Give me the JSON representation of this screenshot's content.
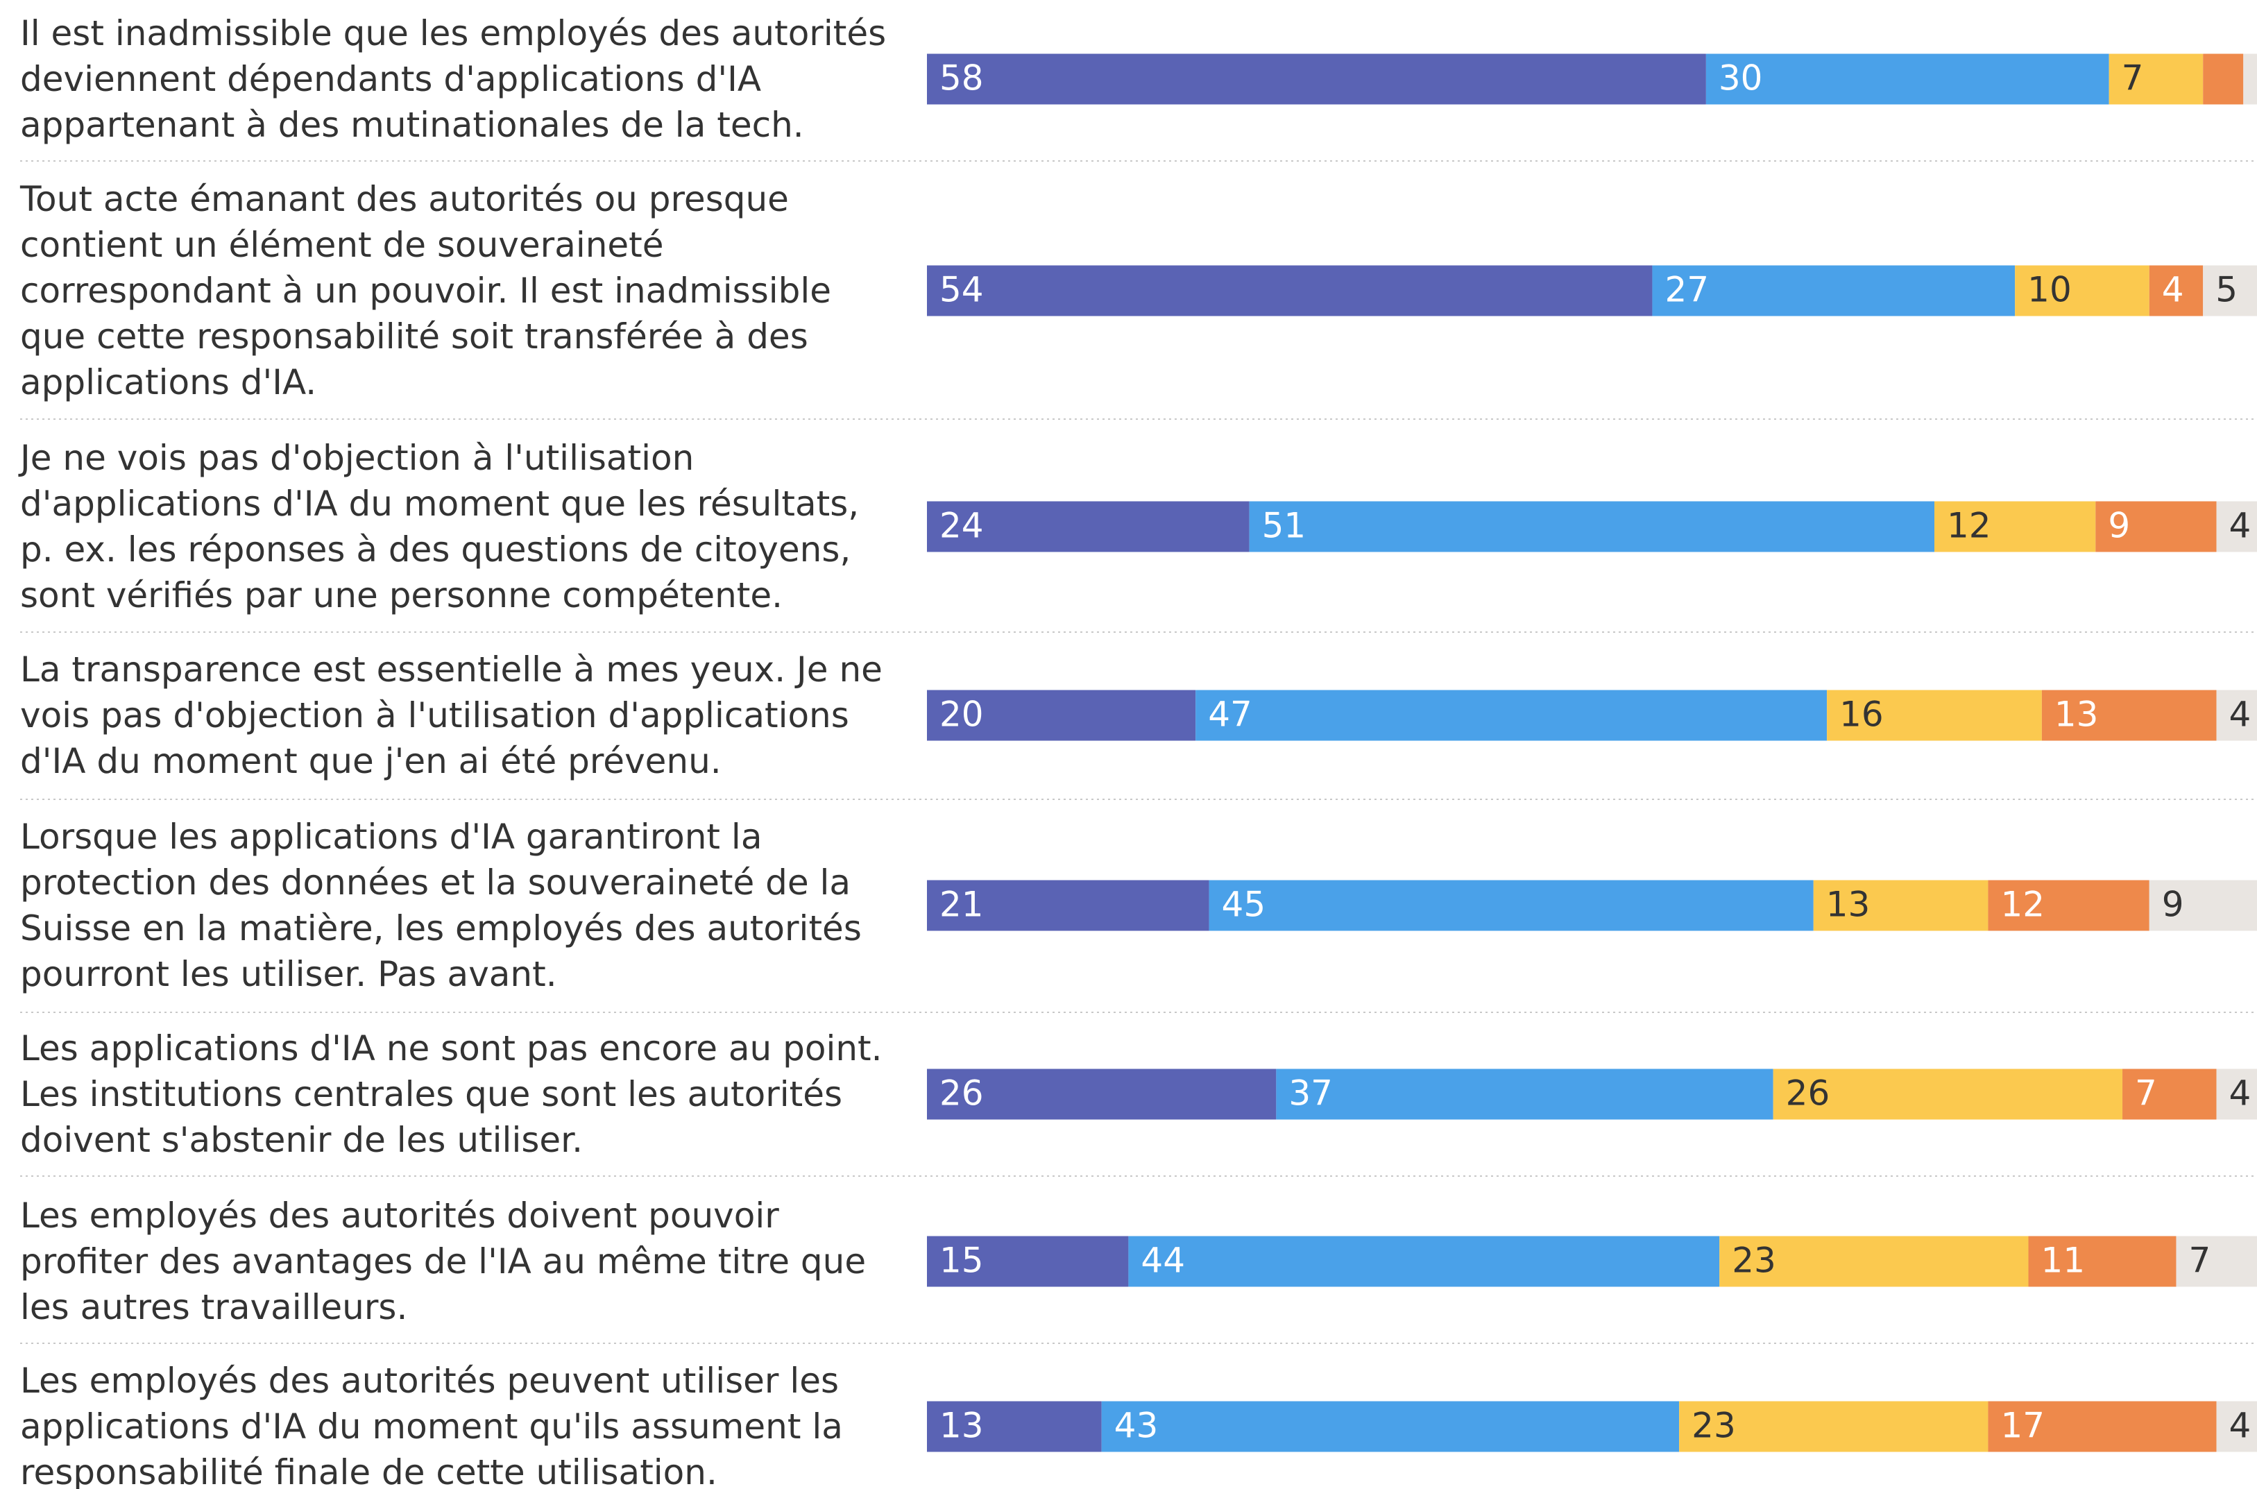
{
  "chart_data": {
    "type": "stacked-bar-horizontal",
    "categories": [
      "Il est inadmissible que les employés des autorités deviennent dépendants d'applications d'IA appartenant à des mutinationales de la tech.",
      "Tout acte émanant des autorités ou presque contient un élément de souveraineté correspondant à un pouvoir. Il est inadmissible que cette responsabilité soit transférée à des applications d'IA.",
      "Je ne vois pas d'objection à l'utilisation d'applications d'IA du moment que les résultats, p. ex. les réponses à des questions de citoyens, sont vérifiés par une personne compétente.",
      "La transparence est essentielle à mes yeux. Je ne vois pas d'objection à l'utilisation d'applications d'IA du moment que j'en ai été prévenu.",
      "Lorsque les applications d'IA garantiront la protection des données et la souveraineté de la Suisse en la matière, les employés des autorités pourront les utiliser. Pas avant.",
      "Les applications d'IA ne sont pas encore au point. Les institutions centrales que sont les autorités doivent s'abstenir de les utiliser.",
      "Les employés des autorités doivent pouvoir profiter des avantages de l'IA au même titre que les autres travailleurs.",
      "Les employés des autorités peuvent utiliser les applications d'IA du moment qu'ils assument la responsabilité finale de cette utilisation."
    ],
    "series": [
      {
        "color": "#5a63b4",
        "label_color": "#ffffff",
        "values": [
          58,
          54,
          24,
          20,
          21,
          26,
          15,
          13
        ]
      },
      {
        "color": "#4aa1e9",
        "label_color": "#ffffff",
        "values": [
          30,
          27,
          51,
          47,
          45,
          37,
          44,
          43
        ]
      },
      {
        "color": "#fbc94f",
        "label_color": "#333333",
        "values": [
          7,
          10,
          12,
          16,
          13,
          26,
          23,
          23
        ]
      },
      {
        "color": "#ee894b",
        "label_color": "#ffffff",
        "values": [
          3,
          4,
          9,
          13,
          12,
          7,
          11,
          17
        ]
      },
      {
        "color": "#e9e5e1",
        "label_color": "#333333",
        "values": [
          2,
          5,
          4,
          4,
          9,
          4,
          7,
          4
        ]
      }
    ],
    "xlim": [
      0,
      100
    ]
  }
}
